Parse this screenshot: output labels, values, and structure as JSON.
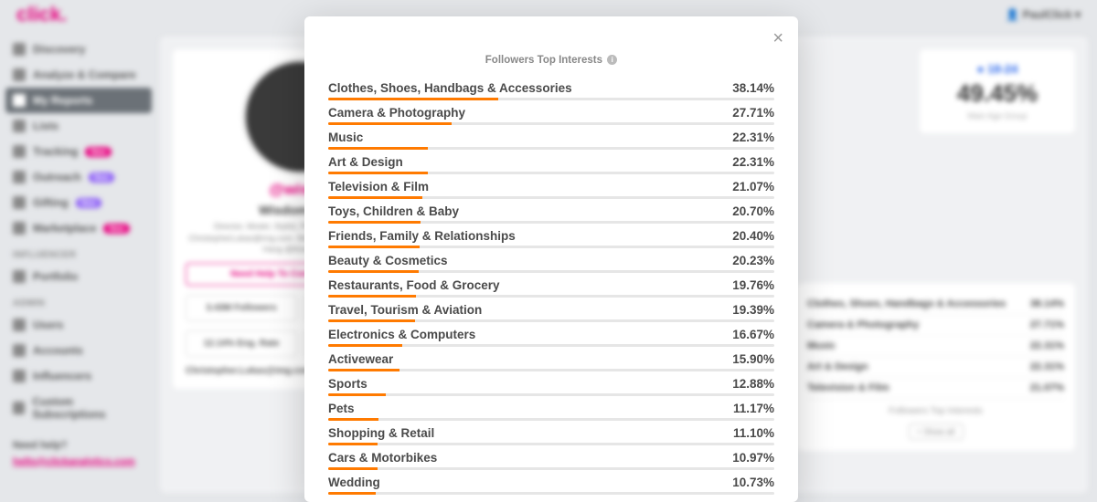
{
  "brand": {
    "name": "click",
    "color": "#e6007e"
  },
  "user": {
    "label": "PaulClick"
  },
  "sidebar": {
    "nav": [
      {
        "label": "Discovery",
        "active": false
      },
      {
        "label": "Analyze & Compare",
        "active": false
      },
      {
        "label": "My Reports",
        "active": true
      },
      {
        "label": "Lists",
        "active": false
      },
      {
        "label": "Tracking",
        "active": false,
        "badge": "New",
        "badge_color": "#e6007e"
      },
      {
        "label": "Outreach",
        "active": false,
        "badge": "New",
        "badge_color": "#8b5cf6"
      },
      {
        "label": "Gifting",
        "active": false,
        "badge": "New",
        "badge_color": "#8b5cf6"
      },
      {
        "label": "Marketplace",
        "active": false,
        "badge": "New",
        "badge_color": "#e6007e"
      }
    ],
    "sections": [
      {
        "title": "INFLUENCER",
        "items": [
          {
            "label": "Portfolio"
          }
        ]
      },
      {
        "title": "ADMIN",
        "items": [
          {
            "label": "Users"
          },
          {
            "label": "Accounts"
          },
          {
            "label": "Influencers"
          },
          {
            "label": "Custom Subscriptions"
          }
        ]
      }
    ],
    "help": {
      "title": "Need help?",
      "link": "hello@clickanalytics.com"
    }
  },
  "profile": {
    "handle": "@wisdm",
    "name": "Wisdom Kaye",
    "bio": "Director, Model, Stylist, Photographer, Inquiries: ChristopherLukas@img.com. More: kaye@img.com. You Can Hang @thisisthebest",
    "contact_btn": "Need Help To Contact Influencer",
    "stat1": "3.43M Followers",
    "stat2": "12.14% Eng. Rate",
    "email": "Christopher.Lukas@img.com"
  },
  "age_card": {
    "range": "18-24",
    "pct": "49.45%",
    "label": "Main Age Group"
  },
  "bg_interests": [
    {
      "label": "Clothes, Shoes, Handbags & Accessories",
      "pct": "38.14%"
    },
    {
      "label": "Camera & Photography",
      "pct": "27.71%"
    },
    {
      "label": "Music",
      "pct": "22.31%"
    },
    {
      "label": "Art & Design",
      "pct": "22.31%"
    },
    {
      "label": "Television & Film",
      "pct": "21.07%"
    }
  ],
  "bg_interests_title": "Followers Top Interests",
  "bg_show_btn": "+ Show all",
  "modal": {
    "title": "Followers Top Interests",
    "bar_color": "#ff7a00",
    "bar_bg": "#e6e6e6",
    "max_pct": 100,
    "interests": [
      {
        "label": "Clothes, Shoes, Handbags & Accessories",
        "pct": 38.14
      },
      {
        "label": "Camera & Photography",
        "pct": 27.71
      },
      {
        "label": "Music",
        "pct": 22.31
      },
      {
        "label": "Art & Design",
        "pct": 22.31
      },
      {
        "label": "Television & Film",
        "pct": 21.07
      },
      {
        "label": "Toys, Children & Baby",
        "pct": 20.7
      },
      {
        "label": "Friends, Family & Relationships",
        "pct": 20.4
      },
      {
        "label": "Beauty & Cosmetics",
        "pct": 20.23
      },
      {
        "label": "Restaurants, Food & Grocery",
        "pct": 19.76
      },
      {
        "label": "Travel, Tourism & Aviation",
        "pct": 19.39
      },
      {
        "label": "Electronics & Computers",
        "pct": 16.67
      },
      {
        "label": "Activewear",
        "pct": 15.9
      },
      {
        "label": "Sports",
        "pct": 12.88
      },
      {
        "label": "Pets",
        "pct": 11.17
      },
      {
        "label": "Shopping & Retail",
        "pct": 11.1
      },
      {
        "label": "Cars & Motorbikes",
        "pct": 10.97
      },
      {
        "label": "Wedding",
        "pct": 10.73
      }
    ]
  }
}
